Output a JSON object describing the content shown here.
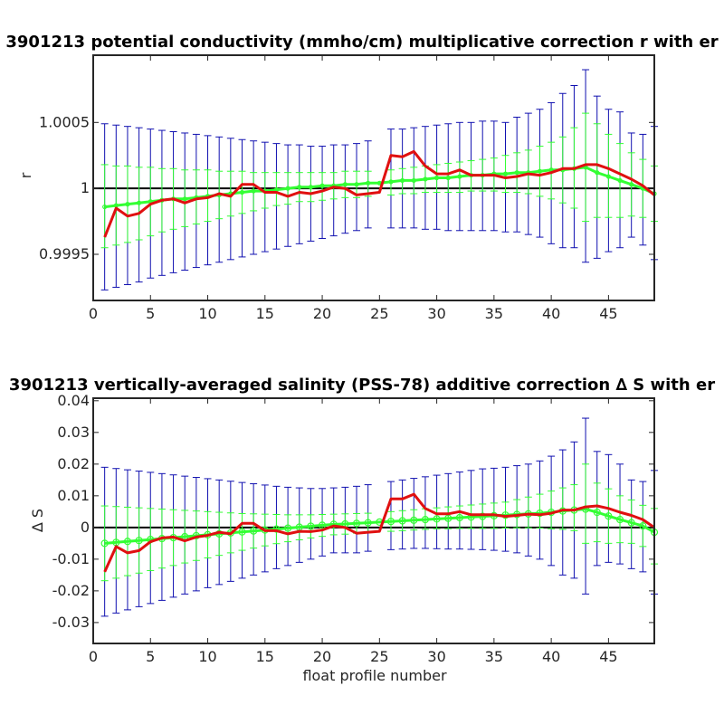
{
  "chart_data": [
    {
      "type": "line",
      "title": "3901213 potential conductivity (mmho/cm) multiplicative correction r with er",
      "xlabel": "",
      "ylabel": "r",
      "xlim": [
        0,
        49
      ],
      "ylim": [
        0.99915,
        1.00101
      ],
      "xticks": [
        0,
        5,
        10,
        15,
        20,
        25,
        30,
        35,
        40,
        45
      ],
      "yticks": [
        0.9995,
        1,
        1.0005
      ],
      "ytick_labels": [
        "0.9995",
        "1",
        "1.0005"
      ],
      "reference_line": 1,
      "grid": false,
      "colors": {
        "red": "#e01010",
        "green": "#33ff33",
        "blue": "#1010b0",
        "ref": "#000000"
      },
      "x": [
        1,
        2,
        3,
        4,
        5,
        6,
        7,
        8,
        9,
        10,
        11,
        12,
        13,
        14,
        15,
        16,
        17,
        18,
        19,
        20,
        21,
        22,
        23,
        24,
        25,
        26,
        27,
        28,
        29,
        30,
        31,
        32,
        33,
        34,
        35,
        36,
        37,
        38,
        39,
        40,
        41,
        42,
        43,
        44,
        45,
        46,
        47,
        48,
        49
      ],
      "red": [
        0.99963,
        0.99985,
        0.99979,
        0.99981,
        0.99988,
        0.99991,
        0.99992,
        0.99989,
        0.99992,
        0.99993,
        0.99996,
        0.99994,
        1.00003,
        1.00003,
        0.99997,
        0.99997,
        0.99994,
        0.99997,
        0.99996,
        0.99998,
        1.00001,
        1.0,
        0.99995,
        0.99996,
        0.99997,
        1.00025,
        1.00024,
        1.00028,
        1.00017,
        1.00011,
        1.00011,
        1.00014,
        1.0001,
        1.0001,
        1.0001,
        1.00008,
        1.00009,
        1.00011,
        1.0001,
        1.00012,
        1.00015,
        1.00015,
        1.00018,
        1.00018,
        1.00015,
        1.00011,
        1.00007,
        1.00002,
        0.99995
      ],
      "green": [
        0.99986,
        0.99987,
        0.99988,
        0.99989,
        0.9999,
        0.99991,
        0.99992,
        0.99992,
        0.99993,
        0.99994,
        0.99995,
        0.99996,
        0.99997,
        0.99998,
        0.99998,
        0.99999,
        1.0,
        1.00001,
        1.00001,
        1.00002,
        1.00002,
        1.00003,
        1.00003,
        1.00004,
        1.00004,
        1.00005,
        1.00006,
        1.00006,
        1.00007,
        1.00008,
        1.00008,
        1.00009,
        1.0001,
        1.0001,
        1.00011,
        1.00011,
        1.00012,
        1.00012,
        1.00013,
        1.00014,
        1.00014,
        1.00015,
        1.00016,
        1.00012,
        1.00009,
        1.00006,
        1.00003,
        1.0,
        0.99996
      ],
      "green_err_upper": [
        1.00018,
        1.00017,
        1.00017,
        1.00016,
        1.00016,
        1.00015,
        1.00015,
        1.00014,
        1.00014,
        1.00014,
        1.00013,
        1.00013,
        1.00013,
        1.00012,
        1.00012,
        1.00012,
        1.00012,
        1.00012,
        1.00012,
        1.00012,
        1.00012,
        1.00013,
        1.00013,
        1.00013,
        null,
        1.00014,
        1.00015,
        1.00016,
        1.00017,
        1.00018,
        1.00019,
        1.0002,
        1.00021,
        1.00022,
        1.00023,
        1.00025,
        1.00027,
        1.00029,
        1.00032,
        1.00035,
        1.00039,
        1.00046,
        1.00057,
        1.00049,
        1.00041,
        1.00034,
        1.00027,
        1.00022,
        1.00017
      ],
      "green_err_lower": [
        0.99955,
        0.99957,
        0.99959,
        0.99961,
        0.99964,
        0.99967,
        0.99969,
        0.99971,
        0.99973,
        0.99975,
        0.99977,
        0.99979,
        0.99981,
        0.99983,
        0.99985,
        0.99987,
        0.99988,
        0.9999,
        0.9999,
        0.99991,
        0.99992,
        0.99993,
        0.99993,
        0.99994,
        null,
        0.99995,
        0.99996,
        0.99996,
        0.99997,
        0.99997,
        0.99997,
        0.99997,
        0.99998,
        0.99998,
        0.99998,
        0.99997,
        0.99997,
        0.99996,
        0.99994,
        0.99992,
        0.99989,
        0.99985,
        0.99975,
        0.99978,
        0.99978,
        0.99978,
        0.99979,
        0.99978,
        0.99975
      ],
      "blue_err_upper": [
        1.00049,
        1.00048,
        1.00047,
        1.00046,
        1.00045,
        1.00044,
        1.00043,
        1.00042,
        1.00041,
        1.0004,
        1.00039,
        1.00038,
        1.00037,
        1.00036,
        1.00035,
        1.00034,
        1.00033,
        1.00033,
        1.00032,
        1.00032,
        1.00033,
        1.00033,
        1.00034,
        1.00036,
        null,
        1.00045,
        1.00045,
        1.00046,
        1.00047,
        1.00048,
        1.00049,
        1.0005,
        1.0005,
        1.00051,
        1.00051,
        1.0005,
        1.00054,
        1.00057,
        1.0006,
        1.00065,
        1.00072,
        1.00078,
        1.0009,
        1.0007,
        1.0006,
        1.00058,
        1.00042,
        1.00041,
        1.00047
      ],
      "blue_err_lower": [
        0.99923,
        0.99925,
        0.99927,
        0.99929,
        0.99932,
        0.99934,
        0.99936,
        0.99938,
        0.9994,
        0.99942,
        0.99944,
        0.99946,
        0.99948,
        0.9995,
        0.99952,
        0.99954,
        0.99956,
        0.99958,
        0.9996,
        0.99962,
        0.99964,
        0.99966,
        0.99968,
        0.9997,
        null,
        0.9997,
        0.9997,
        0.9997,
        0.99969,
        0.99969,
        0.99968,
        0.99968,
        0.99968,
        0.99968,
        0.99968,
        0.99967,
        0.99967,
        0.99965,
        0.99963,
        0.99958,
        0.99955,
        0.99955,
        0.99944,
        0.99947,
        0.99952,
        0.99955,
        0.99963,
        0.99957,
        0.99946
      ]
    },
    {
      "type": "line",
      "title": "3901213 vertically-averaged salinity (PSS-78) additive correction ∆ S with er",
      "xlabel": "float profile number",
      "ylabel": "∆ S",
      "xlim": [
        0,
        49
      ],
      "ylim": [
        -0.0366,
        0.0408
      ],
      "xticks": [
        0,
        5,
        10,
        15,
        20,
        25,
        30,
        35,
        40,
        45
      ],
      "yticks": [
        -0.03,
        -0.02,
        -0.01,
        0,
        0.01,
        0.02,
        0.03,
        0.04
      ],
      "ytick_labels": [
        "-0.03",
        "-0.02",
        "-0.01",
        "0",
        "0.01",
        "0.02",
        "0.03",
        "0.04"
      ],
      "reference_line": 0,
      "grid": false,
      "colors": {
        "red": "#e01010",
        "green": "#33ff33",
        "blue": "#1010b0",
        "ref": "#000000"
      },
      "x": [
        1,
        2,
        3,
        4,
        5,
        6,
        7,
        8,
        9,
        10,
        11,
        12,
        13,
        14,
        15,
        16,
        17,
        18,
        19,
        20,
        21,
        22,
        23,
        24,
        25,
        26,
        27,
        28,
        29,
        30,
        31,
        32,
        33,
        34,
        35,
        36,
        37,
        38,
        39,
        40,
        41,
        42,
        43,
        44,
        45,
        46,
        47,
        48,
        49
      ],
      "red": [
        -0.014,
        -0.006,
        -0.008,
        -0.0073,
        -0.0045,
        -0.0033,
        -0.003,
        -0.0042,
        -0.003,
        -0.0025,
        -0.0015,
        -0.002,
        0.0013,
        0.0013,
        -0.001,
        -0.001,
        -0.002,
        -0.0012,
        -0.0013,
        -0.0008,
        0.0005,
        0.0,
        -0.0018,
        -0.0015,
        -0.0012,
        0.009,
        0.009,
        0.0105,
        0.006,
        0.0043,
        0.0043,
        0.005,
        0.004,
        0.004,
        0.004,
        0.0035,
        0.0038,
        0.0042,
        0.004,
        0.0045,
        0.0055,
        0.0055,
        0.0065,
        0.0068,
        0.006,
        0.0048,
        0.0038,
        0.0025,
        0.0
      ],
      "green": [
        -0.005,
        -0.0047,
        -0.0044,
        -0.0041,
        -0.0038,
        -0.0035,
        -0.0032,
        -0.0029,
        -0.0026,
        -0.0023,
        -0.002,
        -0.0017,
        -0.0014,
        -0.0011,
        -0.0008,
        -0.0005,
        -0.0002,
        0.0001,
        0.0004,
        0.0007,
        0.001,
        0.0011,
        0.0013,
        0.0015,
        0.0017,
        0.0019,
        0.0021,
        0.0023,
        0.0025,
        0.0027,
        0.0029,
        0.0031,
        0.0033,
        0.0035,
        0.0037,
        0.0039,
        0.0041,
        0.0043,
        0.0045,
        0.0048,
        0.0052,
        0.0055,
        0.0058,
        0.0048,
        0.0036,
        0.0025,
        0.0015,
        0.0005,
        -0.0015
      ],
      "green_err_upper": [
        0.0068,
        0.0066,
        0.0064,
        0.0062,
        0.006,
        0.0058,
        0.0056,
        0.0054,
        0.0052,
        0.005,
        0.0048,
        0.0046,
        0.0044,
        0.0043,
        0.0042,
        0.0041,
        0.004,
        0.004,
        0.004,
        0.0041,
        0.0042,
        0.0043,
        0.0044,
        0.0045,
        null,
        0.005,
        0.0053,
        0.0056,
        0.0059,
        0.0062,
        0.0065,
        0.0068,
        0.0071,
        0.0074,
        0.0077,
        0.008,
        0.0088,
        0.0096,
        0.0105,
        0.0115,
        0.0125,
        0.0135,
        0.02,
        0.014,
        0.0122,
        0.01,
        0.0087,
        0.007,
        0.006
      ],
      "green_err_lower": [
        -0.0168,
        -0.016,
        -0.0152,
        -0.0144,
        -0.0136,
        -0.0128,
        -0.012,
        -0.0112,
        -0.0104,
        -0.0096,
        -0.0088,
        -0.008,
        -0.0072,
        -0.0065,
        -0.0058,
        -0.0051,
        -0.0045,
        -0.0039,
        -0.0033,
        -0.0028,
        -0.0023,
        -0.0021,
        -0.0018,
        -0.0015,
        null,
        -0.0012,
        -0.001,
        -0.0008,
        -0.0006,
        -0.0004,
        -0.0004,
        -0.0003,
        -0.0003,
        -0.0003,
        -0.0003,
        -0.0002,
        -0.0001,
        -0.0001,
        -0.0002,
        -0.0004,
        -0.0006,
        -0.001,
        -0.005,
        -0.0045,
        -0.005,
        -0.0048,
        -0.005,
        -0.006,
        -0.0115
      ],
      "blue_err_upper": [
        0.019,
        0.0186,
        0.0182,
        0.0178,
        0.0174,
        0.017,
        0.0166,
        0.0162,
        0.0158,
        0.0154,
        0.015,
        0.0146,
        0.0142,
        0.0138,
        0.0134,
        0.013,
        0.0127,
        0.0125,
        0.0123,
        0.0123,
        0.0125,
        0.0127,
        0.013,
        0.0135,
        null,
        0.0145,
        0.015,
        0.0155,
        0.016,
        0.0165,
        0.017,
        0.0175,
        0.018,
        0.0185,
        0.0187,
        0.019,
        0.0195,
        0.02,
        0.021,
        0.0225,
        0.0245,
        0.027,
        0.0345,
        0.024,
        0.023,
        0.02,
        0.015,
        0.0145,
        0.018
      ],
      "blue_err_lower": [
        -0.028,
        -0.027,
        -0.026,
        -0.025,
        -0.024,
        -0.023,
        -0.022,
        -0.021,
        -0.02,
        -0.019,
        -0.018,
        -0.017,
        -0.016,
        -0.015,
        -0.014,
        -0.013,
        -0.012,
        -0.011,
        -0.01,
        -0.009,
        -0.008,
        -0.008,
        -0.008,
        -0.0075,
        null,
        -0.007,
        -0.0068,
        -0.0066,
        -0.0066,
        -0.0067,
        -0.0068,
        -0.0068,
        -0.0069,
        -0.007,
        -0.0072,
        -0.0075,
        -0.008,
        -0.009,
        -0.01,
        -0.012,
        -0.015,
        -0.016,
        -0.021,
        -0.012,
        -0.011,
        -0.0115,
        -0.013,
        -0.014,
        -0.021
      ]
    }
  ]
}
